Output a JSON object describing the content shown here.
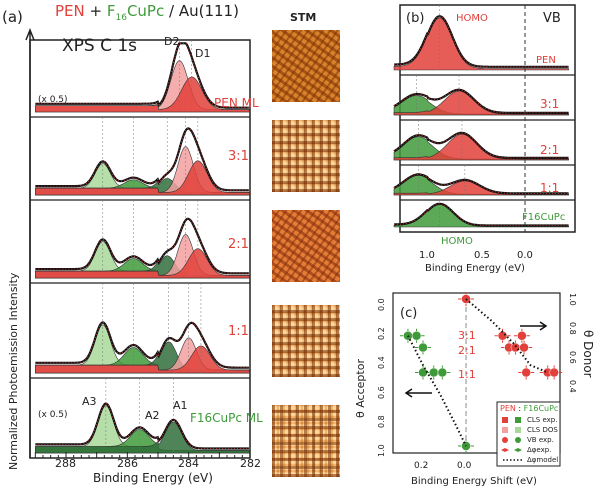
{
  "header": {
    "pen": "PEN",
    "plus": " + ",
    "f16": "F16CuPc",
    "f16_main": "F",
    "f16_sub": "16",
    "f16_rest": "CuPc",
    "slash": " / Au(111)"
  },
  "panel_a": {
    "label": "(a)",
    "title": "XPS C 1s",
    "ylabel": "Normalized Photoemission Intensity",
    "xlabel": "Binding Energy (eV)",
    "xticks": [
      "288",
      "286",
      "284",
      "282"
    ],
    "scale_note": "(x 0.5)",
    "rows": [
      {
        "label": "PEN ML",
        "peak_labels": [
          "D2",
          "D1"
        ]
      },
      {
        "label": "3:1"
      },
      {
        "label": "2:1"
      },
      {
        "label": "1:1"
      },
      {
        "label": "F16CuPc ML",
        "peak_labels": [
          "A3",
          "A2",
          "A1"
        ]
      }
    ]
  },
  "stm": {
    "title": "STM"
  },
  "panel_b": {
    "label": "(b)",
    "title": "VB",
    "homo_top": "HOMO",
    "homo_bottom": "HOMO",
    "xlabel": "Binding Energy (eV)",
    "xticks": [
      "1.0",
      "0.5",
      "0.0"
    ],
    "rows": [
      "PEN",
      "3:1",
      "2:1",
      "1:1",
      "F16CuPc"
    ]
  },
  "panel_c": {
    "label": "(c)",
    "ylabel_left": "θ Acceptor",
    "ylabel_right": "θ Donor",
    "xlabel": "Binding Energy Shift (eV)",
    "xticks": [
      "0.2",
      "0.0"
    ],
    "yticks_left": [
      "0.0",
      "0.2",
      "0.4",
      "0.6",
      "0.8",
      "1.0"
    ],
    "yticks_right": [
      "1.0",
      "0.8",
      "0.6",
      "0.4"
    ],
    "ratios": [
      "3:1",
      "2:1",
      "1:1"
    ],
    "legend": {
      "title_pen": "PEN",
      "title_sep": " : ",
      "title_f16": "F16CuPc",
      "items": [
        "CLS exp.",
        "CLS DOS",
        "VB exp.",
        "Δφexp.",
        "Δφmodel"
      ]
    }
  },
  "colors": {
    "pen": "#e2403a",
    "pen_light": "#f2a0a0",
    "f16": "#3f9a3a",
    "f16_light": "#a8d89a",
    "f16_dark": "#2f6f3a"
  },
  "chart_data": [
    {
      "type": "line",
      "title": "XPS C 1s",
      "xlabel": "Binding Energy (eV)",
      "ylabel": "Normalized Photoemission Intensity",
      "xlim": [
        289,
        282
      ],
      "rows": [
        {
          "name": "PEN ML",
          "components": [
            {
              "center": 284.3,
              "height": 0.75,
              "width": 0.28,
              "color": "pen_light"
            },
            {
              "center": 283.9,
              "height": 0.5,
              "width": 0.33,
              "color": "pen"
            }
          ]
        },
        {
          "name": "3:1",
          "components": [
            {
              "center": 286.8,
              "height": 0.35,
              "width": 0.25,
              "color": "f16_light"
            },
            {
              "center": 285.8,
              "height": 0.12,
              "width": 0.3,
              "color": "f16"
            },
            {
              "center": 284.7,
              "height": 0.2,
              "width": 0.25,
              "color": "f16_dark"
            },
            {
              "center": 284.1,
              "height": 0.65,
              "width": 0.25,
              "color": "pen_light"
            },
            {
              "center": 283.7,
              "height": 0.45,
              "width": 0.3,
              "color": "pen"
            }
          ]
        },
        {
          "name": "2:1",
          "components": [
            {
              "center": 286.8,
              "height": 0.42,
              "width": 0.25,
              "color": "f16_light"
            },
            {
              "center": 285.8,
              "height": 0.18,
              "width": 0.3,
              "color": "f16"
            },
            {
              "center": 284.7,
              "height": 0.28,
              "width": 0.25,
              "color": "f16_dark"
            },
            {
              "center": 284.1,
              "height": 0.58,
              "width": 0.25,
              "color": "pen_light"
            },
            {
              "center": 283.7,
              "height": 0.38,
              "width": 0.3,
              "color": "pen"
            }
          ]
        },
        {
          "name": "1:1",
          "components": [
            {
              "center": 286.8,
              "height": 0.5,
              "width": 0.25,
              "color": "f16_light"
            },
            {
              "center": 285.8,
              "height": 0.22,
              "width": 0.3,
              "color": "f16"
            },
            {
              "center": 284.65,
              "height": 0.35,
              "width": 0.25,
              "color": "f16_dark"
            },
            {
              "center": 284.0,
              "height": 0.4,
              "width": 0.25,
              "color": "pen_light"
            },
            {
              "center": 283.6,
              "height": 0.3,
              "width": 0.3,
              "color": "pen"
            }
          ]
        },
        {
          "name": "F16CuPc ML",
          "components": [
            {
              "center": 286.7,
              "height": 0.6,
              "width": 0.25,
              "color": "f16_light"
            },
            {
              "center": 285.6,
              "height": 0.25,
              "width": 0.3,
              "color": "f16"
            },
            {
              "center": 284.5,
              "height": 0.42,
              "width": 0.27,
              "color": "f16_dark"
            }
          ]
        }
      ]
    },
    {
      "type": "line",
      "title": "VB",
      "xlabel": "Binding Energy (eV)",
      "xlim": [
        1.35,
        -0.45
      ],
      "rows": [
        {
          "name": "PEN",
          "components": [
            {
              "center": 0.88,
              "height": 0.85,
              "width": 0.13,
              "color": "pen"
            }
          ]
        },
        {
          "name": "3:1",
          "components": [
            {
              "center": 1.12,
              "height": 0.45,
              "width": 0.15,
              "color": "f16"
            },
            {
              "center": 0.68,
              "height": 0.6,
              "width": 0.15,
              "color": "pen"
            }
          ]
        },
        {
          "name": "2:1",
          "components": [
            {
              "center": 1.1,
              "height": 0.55,
              "width": 0.15,
              "color": "f16"
            },
            {
              "center": 0.65,
              "height": 0.65,
              "width": 0.15,
              "color": "pen"
            }
          ]
        },
        {
          "name": "1:1",
          "components": [
            {
              "center": 1.1,
              "height": 0.6,
              "width": 0.15,
              "color": "f16"
            },
            {
              "center": 0.62,
              "height": 0.45,
              "width": 0.15,
              "color": "pen"
            }
          ]
        },
        {
          "name": "F16CuPc",
          "components": [
            {
              "center": 0.88,
              "height": 0.8,
              "width": 0.14,
              "color": "f16"
            }
          ]
        }
      ]
    },
    {
      "type": "scatter",
      "xlabel": "Binding Energy Shift (eV)",
      "ylabel": "θ Acceptor",
      "ylabel_right": "θ Donor",
      "xlim": [
        0.3,
        -0.45
      ],
      "ylim": [
        0,
        1
      ],
      "series": [
        {
          "name": "F16CuPc",
          "color": "f16",
          "points": [
            [
              0.27,
              0.25
            ],
            [
              0.23,
              0.25
            ],
            [
              0.2,
              0.33
            ],
            [
              0.2,
              0.5
            ],
            [
              0.15,
              0.5
            ],
            [
              0.11,
              0.5
            ],
            [
              0.0,
              1.0
            ]
          ]
        },
        {
          "name": "PEN",
          "color": "pen",
          "points": [
            [
              0.0,
              0.0
            ],
            [
              -0.17,
              0.25
            ],
            [
              -0.2,
              0.33
            ],
            [
              -0.23,
              0.33
            ],
            [
              -0.26,
              0.25
            ],
            [
              -0.27,
              0.33
            ],
            [
              -0.28,
              0.5
            ],
            [
              -0.38,
              0.5
            ],
            [
              -0.41,
              0.5
            ]
          ]
        },
        {
          "name": "Δφmodel F16CuPc",
          "style": "dotted",
          "points": [
            [
              0.27,
              0.25
            ],
            [
              0.2,
              0.45
            ],
            [
              0.12,
              0.65
            ],
            [
              0.05,
              0.85
            ],
            [
              0.0,
              1.0
            ]
          ]
        },
        {
          "name": "Δφmodel PEN",
          "style": "dotted",
          "points": [
            [
              0.0,
              0.0
            ],
            [
              -0.12,
              0.15
            ],
            [
              -0.22,
              0.3
            ],
            [
              -0.3,
              0.45
            ],
            [
              -0.38,
              0.5
            ]
          ]
        }
      ]
    }
  ]
}
